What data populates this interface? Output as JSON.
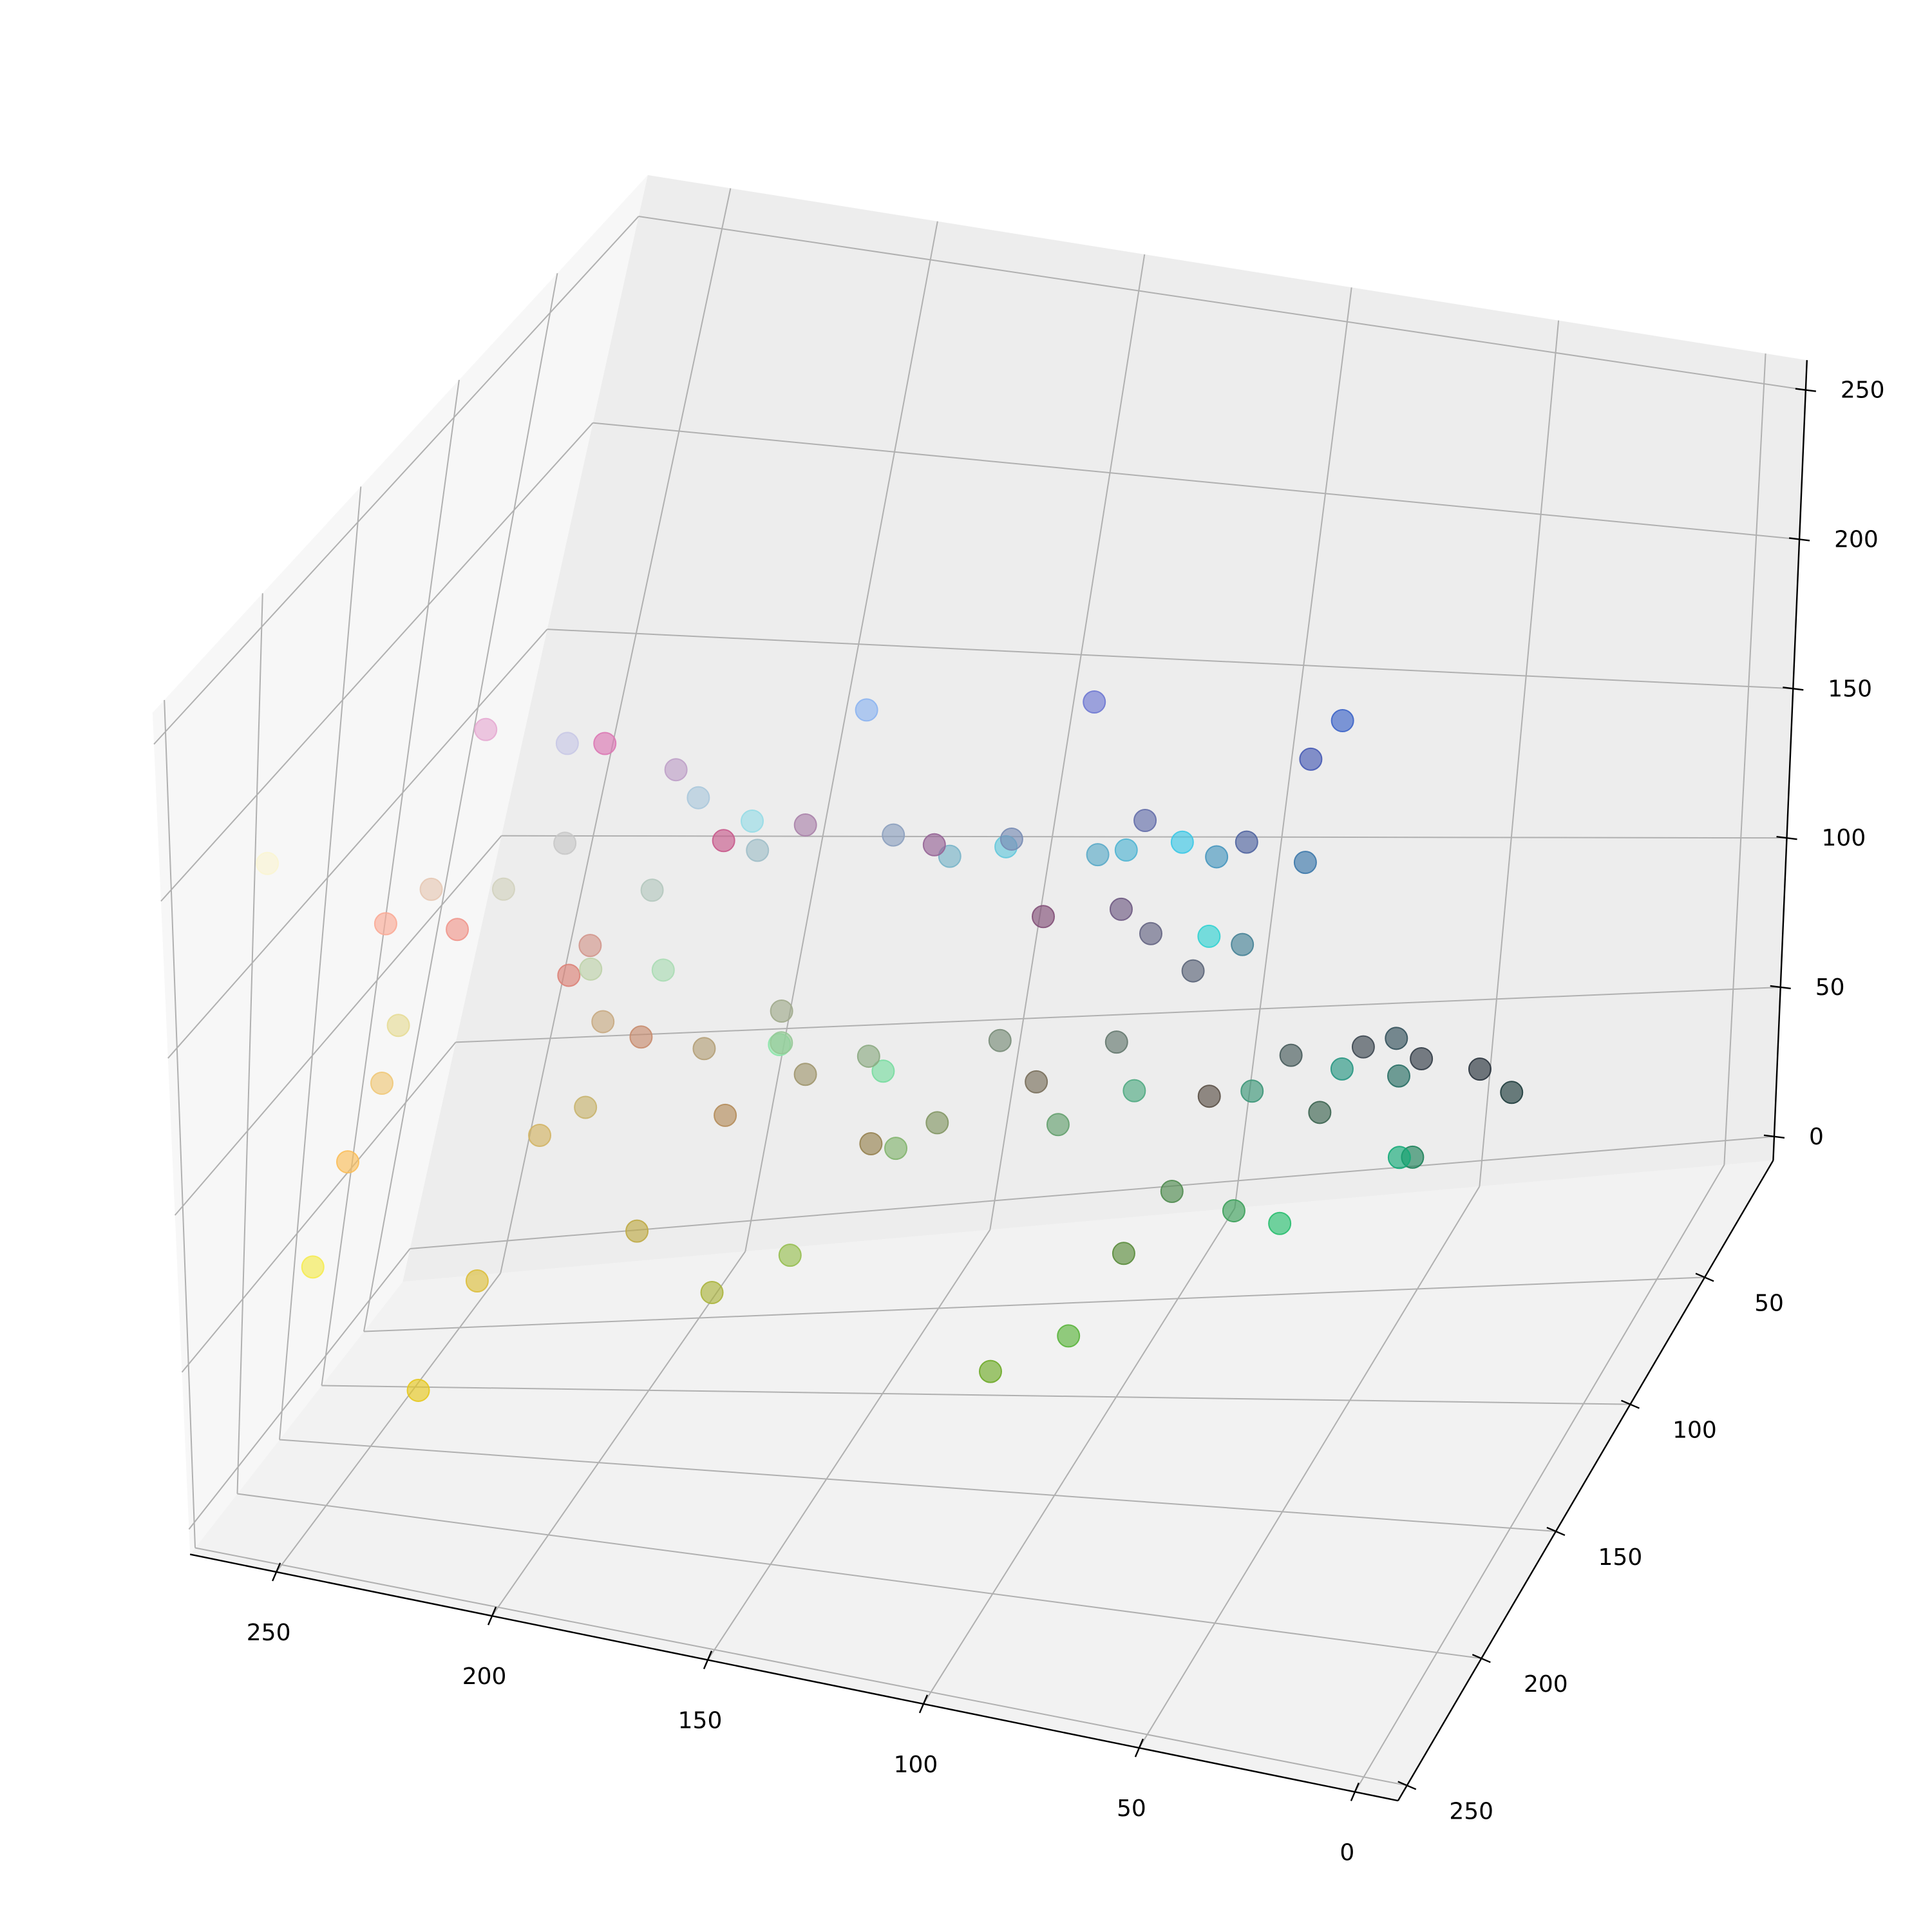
{
  "chart_data": {
    "type": "scatter3d",
    "x": [
      245,
      250,
      230,
      110,
      90,
      60,
      40,
      60,
      70,
      100,
      220,
      200,
      230,
      140,
      110,
      60,
      50,
      140,
      120,
      230,
      250,
      250,
      220,
      150,
      80,
      200,
      180,
      160,
      120,
      90,
      70,
      50,
      40,
      60,
      30,
      40,
      30,
      60,
      80,
      100,
      130,
      160,
      180,
      200,
      210,
      220,
      240,
      230,
      210,
      190,
      170,
      150,
      140,
      120,
      100,
      90,
      110,
      130,
      150,
      170,
      190,
      200,
      170,
      150,
      100,
      80,
      70,
      60,
      80,
      100,
      120,
      140,
      200,
      190,
      170,
      210,
      240,
      180,
      150,
      120,
      90,
      70,
      50,
      40,
      20,
      60,
      90,
      130,
      160,
      200
    ],
    "y": [
      235,
      245,
      200,
      170,
      180,
      100,
      190,
      100,
      90,
      100,
      120,
      90,
      170,
      180,
      120,
      200,
      210,
      230,
      220,
      220,
      170,
      190,
      190,
      190,
      140,
      200,
      200,
      190,
      180,
      170,
      130,
      60,
      50,
      70,
      60,
      110,
      130,
      150,
      170,
      160,
      150,
      150,
      160,
      170,
      150,
      130,
      150,
      200,
      210,
      210,
      220,
      200,
      170,
      140,
      120,
      100,
      90,
      80,
      100,
      130,
      160,
      200,
      200,
      220,
      200,
      180,
      150,
      120,
      100,
      110,
      140,
      160,
      180,
      170,
      180,
      180,
      200,
      140,
      130,
      110,
      80,
      90,
      80,
      150,
      170,
      160,
      140,
      180,
      170,
      140
    ],
    "z": [
      80,
      210,
      30,
      40,
      60,
      80,
      110,
      200,
      180,
      130,
      180,
      140,
      210,
      240,
      210,
      230,
      210,
      170,
      160,
      150,
      150,
      90,
      60,
      80,
      80,
      200,
      190,
      200,
      200,
      200,
      150,
      70,
      60,
      80,
      60,
      100,
      90,
      120,
      130,
      110,
      100,
      110,
      120,
      130,
      140,
      120,
      140,
      180,
      190,
      170,
      180,
      150,
      130,
      120,
      110,
      120,
      130,
      120,
      150,
      170,
      200,
      230,
      220,
      230,
      220,
      210,
      190,
      170,
      160,
      170,
      180,
      190,
      110,
      70,
      60,
      100,
      120,
      90,
      80,
      90,
      70,
      90,
      90,
      130,
      120,
      90,
      60,
      110,
      140,
      110
    ],
    "colors": [
      "rgb(245,235,80)",
      "rgb(250,245,210)",
      "rgb(230,200,30)",
      "rgb(110,170,40)",
      "rgb(90,180,60)",
      "rgb(60,100,80)",
      "rgb(40,190,110)",
      "rgb(60,100,200)",
      "rgb(70,90,180)",
      "rgb(100,100,130)",
      "rgb(220,120,180)",
      "rgb(200,90,140)",
      "rgb(230,170,210)",
      "rgb(140,180,240)",
      "rgb(110,120,210)",
      "rgb(60,200,230)",
      "rgb(50,210,210)",
      "rgb(140,230,170)",
      "rgb(120,220,160)",
      "rgb(230,220,150)",
      "rgb(250,170,150)",
      "rgb(250,190,90)",
      "rgb(220,190,60)",
      "rgb(150,190,80)",
      "rgb(80,140,80)",
      "rgb(200,200,200)",
      "rgb(180,200,190)",
      "rgb(160,190,200)",
      "rgb(120,180,200)",
      "rgb(90,170,200)",
      "rgb(70,130,150)",
      "rgb(50,60,70)",
      "rgb(40,50,60)",
      "rgb(60,70,80)",
      "rgb(30,60,60)",
      "rgb(40,110,100)",
      "rgb(30,130,90)",
      "rgb(60,150,120)",
      "rgb(80,170,130)",
      "rgb(100,160,110)",
      "rgb(130,150,100)",
      "rgb(160,150,110)",
      "rgb(180,160,120)",
      "rgb(200,170,130)",
      "rgb(210,150,140)",
      "rgb(220,130,120)",
      "rgb(240,150,140)",
      "rgb(230,200,180)",
      "rgb(210,210,190)",
      "rgb(190,210,170)",
      "rgb(170,220,180)",
      "rgb(150,200,150)",
      "rgb(140,170,130)",
      "rgb(120,140,120)",
      "rgb(100,120,110)",
      "rgb(90,100,120)",
      "rgb(110,90,130)",
      "rgb(130,80,120)",
      "rgb(150,100,150)",
      "rgb(170,130,170)",
      "rgb(190,160,200)",
      "rgb(200,200,230)",
      "rgb(170,200,220)",
      "rgb(150,220,230)",
      "rgb(100,200,220)",
      "rgb(80,180,210)",
      "rgb(70,150,190)",
      "rgb(60,120,170)",
      "rgb(80,100,160)",
      "rgb(100,110,170)",
      "rgb(120,140,180)",
      "rgb(140,160,190)",
      "rgb(200,180,110)",
      "rgb(190,170,70)",
      "rgb(170,180,60)",
      "rgb(210,180,100)",
      "rgb(240,200,120)",
      "rgb(180,140,90)",
      "rgb(150,130,80)",
      "rgb(120,110,90)",
      "rgb(90,80,70)",
      "rgb(70,90,90)",
      "rgb(50,80,90)",
      "rgb(40,150,130)",
      "rgb(20,170,120)",
      "rgb(60,160,90)",
      "rgb(90,140,60)",
      "rgb(130,180,110)",
      "rgb(160,170,140)",
      "rgb(200,140,110)"
    ],
    "xlim": [
      -10,
      270
    ],
    "ylim": [
      4,
      256
    ],
    "zlim": [
      -8,
      260
    ],
    "xticks": [
      0,
      50,
      100,
      150,
      200,
      250
    ],
    "yticks": [
      50,
      100,
      150,
      200,
      250
    ],
    "zticks": [
      0,
      50,
      100,
      150,
      200,
      250
    ],
    "grid": true
  }
}
